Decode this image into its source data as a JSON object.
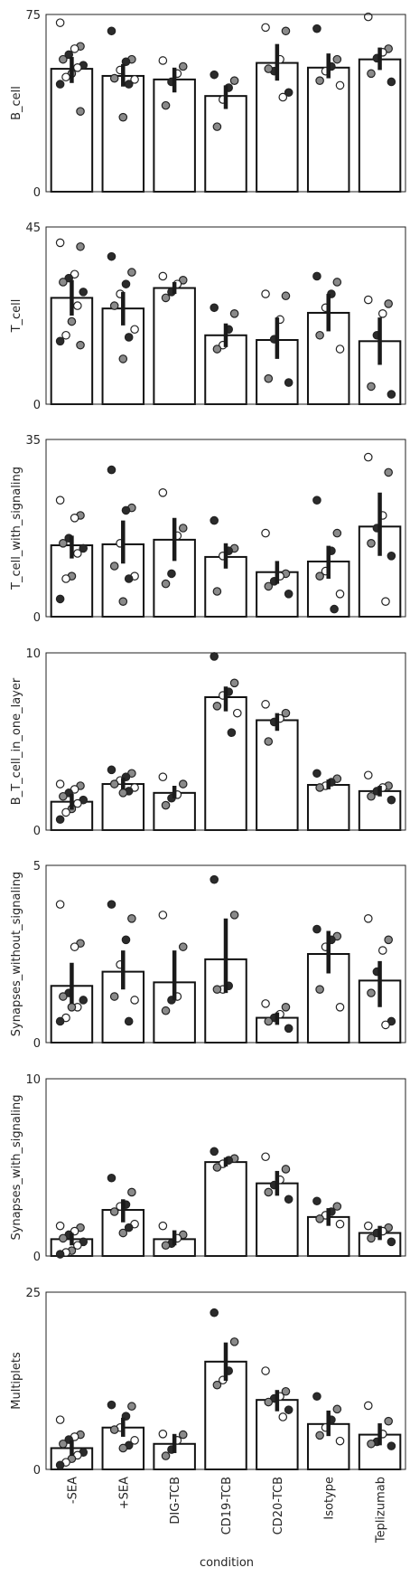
{
  "figure": {
    "xlabel": "condition"
  },
  "chart_data": [
    {
      "type": "bar",
      "categories": [
        "-SEA",
        "+SEA",
        "DIG-TCB",
        "CD19-TCB",
        "CD20-TCB",
        "Isotype",
        "Teplizumab"
      ],
      "ylabel": "B_cell",
      "ylim": [
        0,
        75
      ],
      "yticks": [
        0,
        75
      ],
      "values": [
        52,
        49,
        47.5,
        40.5,
        54.5,
        52.5,
        56
      ],
      "error_bars": [
        [
          46,
          57
        ],
        [
          44.5,
          54
        ],
        [
          42,
          52.5
        ],
        [
          35,
          45
        ],
        [
          47,
          62.5
        ],
        [
          48,
          58.5
        ],
        [
          51.5,
          61
        ]
      ],
      "points": [
        [
          71.5,
          61.5,
          60.5,
          58,
          56,
          53.5,
          52.5,
          50,
          48.5,
          45.5,
          34
        ],
        [
          68,
          56,
          55,
          51.5,
          48,
          47.5,
          45.5,
          31.5
        ],
        [
          55.5,
          53,
          50,
          46.5,
          36.5
        ],
        [
          49.5,
          47,
          44,
          39,
          27.5
        ],
        [
          69.5,
          68,
          56,
          51,
          52,
          42,
          40
        ],
        [
          69,
          56,
          53,
          51,
          47,
          45
        ],
        [
          74,
          60.5,
          59,
          56.5,
          50,
          46.5
        ]
      ]
    },
    {
      "type": "bar",
      "categories": [
        "-SEA",
        "+SEA",
        "DIG-TCB",
        "CD19-TCB",
        "CD20-TCB",
        "Isotype",
        "Teplizumab"
      ],
      "ylabel": "T_cell",
      "ylim": [
        0,
        45
      ],
      "yticks": [
        0,
        45
      ],
      "values": [
        27,
        24.3,
        29.5,
        17.5,
        16.3,
        23.2,
        16
      ],
      "error_bars": [
        [
          22.5,
          31.5
        ],
        [
          20,
          28.5
        ],
        [
          28,
          31
        ],
        [
          14.5,
          20.5
        ],
        [
          11.5,
          22
        ],
        [
          18.5,
          28
        ],
        [
          10,
          22
        ]
      ],
      "points": [
        [
          41,
          40,
          33,
          32,
          31,
          28.5,
          25,
          21,
          17.5,
          16,
          15
        ],
        [
          37.5,
          33.5,
          30.5,
          28,
          25,
          19,
          17,
          11.5
        ],
        [
          32.5,
          31.5,
          30.5,
          28.5,
          27
        ],
        [
          24.5,
          23,
          19,
          15,
          14
        ],
        [
          28,
          27.5,
          21.5,
          16.5,
          6.5,
          5.5
        ],
        [
          32.5,
          31,
          28,
          24.5,
          17.5,
          14
        ],
        [
          26.5,
          25.5,
          23,
          17.5,
          4.5,
          2.5
        ]
      ]
    },
    {
      "type": "bar",
      "categories": [
        "-SEA",
        "+SEA",
        "DIG-TCB",
        "CD19-TCB",
        "CD20-TCB",
        "Isotype",
        "Teplizumab"
      ],
      "ylabel": "T_cell_with_signaling",
      "ylim": [
        0,
        35
      ],
      "yticks": [
        0,
        35
      ],
      "values": [
        14.1,
        14.3,
        15.2,
        11.8,
        8.8,
        10.9,
        17.8
      ],
      "error_bars": [
        [
          11.5,
          16
        ],
        [
          10.5,
          19
        ],
        [
          11,
          19.5
        ],
        [
          9.5,
          14.5
        ],
        [
          6.5,
          11
        ],
        [
          7.5,
          14
        ],
        [
          12,
          24.5
        ]
      ],
      "points": [
        [
          23,
          20,
          19.5,
          15.5,
          14.5,
          13.5,
          12.5,
          8,
          7.5,
          3.5
        ],
        [
          29,
          21.5,
          21,
          14.5,
          10,
          8,
          7.5,
          3
        ],
        [
          24.5,
          17.5,
          16,
          8.5,
          6.5
        ],
        [
          19,
          13.5,
          13,
          12,
          5
        ],
        [
          16.5,
          8.5,
          8,
          7,
          6,
          4.5
        ],
        [
          23,
          16.5,
          13,
          9,
          8,
          4.5,
          1.5
        ],
        [
          31.5,
          28.5,
          20,
          17.5,
          14.5,
          12,
          3
        ]
      ]
    },
    {
      "type": "bar",
      "categories": [
        "-SEA",
        "+SEA",
        "DIG-TCB",
        "CD19-TCB",
        "CD20-TCB",
        "Isotype",
        "Teplizumab"
      ],
      "ylabel": "B_T_cell_in_one_layer",
      "ylim": [
        0,
        10
      ],
      "yticks": [
        0,
        10
      ],
      "values": [
        1.6,
        2.6,
        2.1,
        7.5,
        6.2,
        2.55,
        2.2
      ],
      "error_bars": [
        [
          1.15,
          2.05
        ],
        [
          2.3,
          2.95
        ],
        [
          1.8,
          2.5
        ],
        [
          6.7,
          8.1
        ],
        [
          5.6,
          6.6
        ],
        [
          2.3,
          2.85
        ],
        [
          1.9,
          2.5
        ]
      ],
      "points": [
        [
          2.6,
          2.5,
          2.3,
          2.1,
          1.9,
          1.7,
          1.5,
          1.2,
          1.0,
          0.6
        ],
        [
          3.4,
          3.2,
          3.0,
          2.8,
          2.6,
          2.4,
          2.2,
          2.1
        ],
        [
          3.0,
          2.6,
          2.0,
          1.8,
          1.4
        ],
        [
          9.8,
          8.3,
          7.8,
          7.6,
          7.0,
          6.6,
          5.5
        ],
        [
          7.1,
          6.6,
          6.3,
          6.1,
          5.0
        ],
        [
          3.2,
          2.9,
          2.7,
          2.5,
          2.4
        ],
        [
          3.1,
          2.5,
          2.4,
          2.2,
          1.9,
          1.7
        ]
      ]
    },
    {
      "type": "bar",
      "categories": [
        "-SEA",
        "+SEA",
        "DIG-TCB",
        "CD19-TCB",
        "CD20-TCB",
        "Isotype",
        "Teplizumab"
      ],
      "ylabel": "Synapses_without_signaling",
      "ylim": [
        0,
        5
      ],
      "yticks": [
        0,
        5
      ],
      "values": [
        1.6,
        2.0,
        1.7,
        2.35,
        0.7,
        2.5,
        1.75
      ],
      "error_bars": [
        [
          1.1,
          2.25
        ],
        [
          1.5,
          2.6
        ],
        [
          1.2,
          2.6
        ],
        [
          1.4,
          3.5
        ],
        [
          0.5,
          0.85
        ],
        [
          1.95,
          3.15
        ],
        [
          1.0,
          2.3
        ]
      ],
      "points": [
        [
          3.9,
          2.8,
          2.7,
          1.4,
          1.3,
          1.2,
          1.0,
          1.0,
          0.7,
          0.6
        ],
        [
          3.9,
          3.5,
          2.9,
          2.2,
          1.3,
          1.2,
          0.6
        ],
        [
          3.6,
          2.7,
          1.3,
          1.2,
          0.9
        ],
        [
          4.6,
          3.6,
          1.6,
          1.5,
          1.5
        ],
        [
          1.1,
          1.0,
          0.8,
          0.7,
          0.6,
          0.4
        ],
        [
          3.2,
          3.0,
          2.9,
          2.7,
          1.5,
          1.0
        ],
        [
          3.5,
          2.9,
          2.6,
          2.0,
          1.4,
          0.6,
          0.5
        ]
      ]
    },
    {
      "type": "bar",
      "categories": [
        "-SEA",
        "+SEA",
        "DIG-TCB",
        "CD19-TCB",
        "CD20-TCB",
        "Isotype",
        "Teplizumab"
      ],
      "ylabel": "Synapses_with_signaling",
      "ylim": [
        0,
        10
      ],
      "yticks": [
        0,
        10
      ],
      "values": [
        0.95,
        2.6,
        0.95,
        5.3,
        4.1,
        2.2,
        1.3
      ],
      "error_bars": [
        [
          0.6,
          1.3
        ],
        [
          1.9,
          3.2
        ],
        [
          0.6,
          1.45
        ],
        [
          5.05,
          5.55
        ],
        [
          3.4,
          4.8
        ],
        [
          1.7,
          2.7
        ],
        [
          0.9,
          1.7
        ]
      ],
      "points": [
        [
          1.7,
          1.6,
          1.4,
          1.2,
          1.0,
          0.8,
          0.6,
          0.3,
          0.2,
          0.1
        ],
        [
          4.4,
          3.6,
          2.9,
          2.8,
          2.5,
          1.8,
          1.6,
          1.3
        ],
        [
          1.7,
          1.2,
          1.0,
          0.7,
          0.6
        ],
        [
          5.9,
          5.5,
          5.4,
          5.2,
          5.0
        ],
        [
          5.6,
          4.9,
          4.3,
          4.0,
          3.6,
          3.2
        ],
        [
          3.1,
          2.8,
          2.5,
          2.3,
          2.1,
          1.8
        ],
        [
          1.7,
          1.6,
          1.4,
          1.3,
          1.0,
          0.8
        ]
      ]
    },
    {
      "type": "bar",
      "categories": [
        "-SEA",
        "+SEA",
        "DIG-TCB",
        "CD19-TCB",
        "CD20-TCB",
        "Isotype",
        "Teplizumab"
      ],
      "ylabel": "Multiplets",
      "ylim": [
        0,
        25
      ],
      "yticks": [
        0,
        25
      ],
      "values": [
        3.0,
        5.9,
        3.6,
        15.2,
        9.8,
        6.4,
        4.9
      ],
      "error_bars": [
        [
          1.9,
          4.1
        ],
        [
          4.6,
          7.3
        ],
        [
          2.3,
          5.0
        ],
        [
          12.5,
          17.9
        ],
        [
          8.2,
          11.2
        ],
        [
          4.7,
          8.3
        ],
        [
          3.4,
          6.5
        ]
      ],
      "points": [
        [
          7.0,
          4.9,
          4.6,
          4.2,
          3.6,
          2.4,
          2.0,
          1.5,
          1.0,
          0.6
        ],
        [
          9.1,
          8.9,
          7.5,
          5.9,
          5.6,
          4.1,
          3.4,
          3.0
        ],
        [
          5.0,
          4.9,
          4.1,
          2.8,
          1.9
        ],
        [
          22.1,
          18.0,
          13.9,
          12.6,
          11.9
        ],
        [
          13.9,
          11.0,
          10.3,
          10.0,
          9.5,
          8.4,
          7.4
        ],
        [
          10.3,
          8.5,
          7.0,
          5.9,
          4.8,
          4.0
        ],
        [
          9.0,
          6.8,
          5.0,
          3.9,
          3.6,
          3.3
        ]
      ]
    }
  ]
}
